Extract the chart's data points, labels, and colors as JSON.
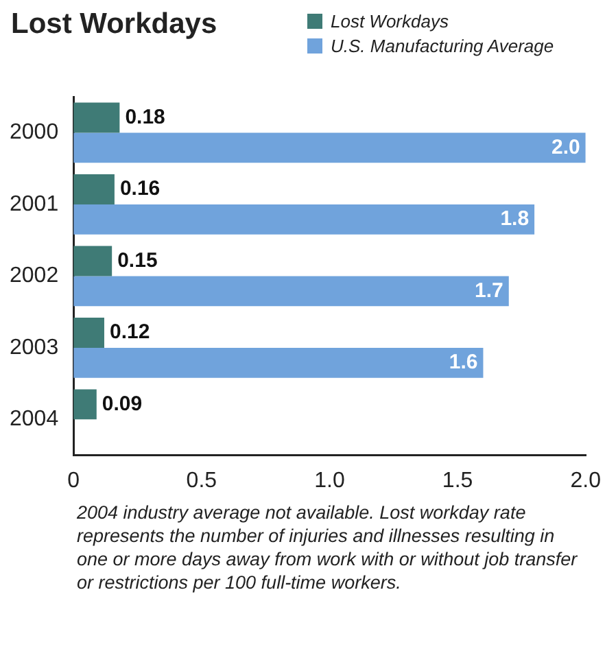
{
  "chart_data": {
    "type": "bar",
    "orientation": "horizontal",
    "title": "Lost Workdays",
    "categories": [
      "2000",
      "2001",
      "2002",
      "2003",
      "2004"
    ],
    "series": [
      {
        "name": "Lost Workdays",
        "color": "#3f7b76",
        "values": [
          0.18,
          0.16,
          0.15,
          0.12,
          0.09
        ],
        "value_labels": [
          "0.18",
          "0.16",
          "0.15",
          "0.12",
          "0.09"
        ]
      },
      {
        "name": "U.S. Manufacturing Average",
        "color": "#70a3dc",
        "values": [
          2.0,
          1.8,
          1.7,
          1.6,
          null
        ],
        "value_labels": [
          "2.0",
          "1.8",
          "1.7",
          "1.6",
          null
        ]
      }
    ],
    "xlim": [
      0,
      2
    ],
    "xticks": [
      0,
      0.5,
      {
        "value": 1,
        "label": "1.0"
      },
      1.5,
      {
        "value": 2,
        "label": "2.0"
      }
    ],
    "grid": false,
    "legend": "top right",
    "annotations": [
      "2004 industry average not available. Lost workday rate represents the number of injuries and illnesses resulting in one or more days away from work with or without job transfer or restrictions per 100 full-time workers."
    ]
  }
}
